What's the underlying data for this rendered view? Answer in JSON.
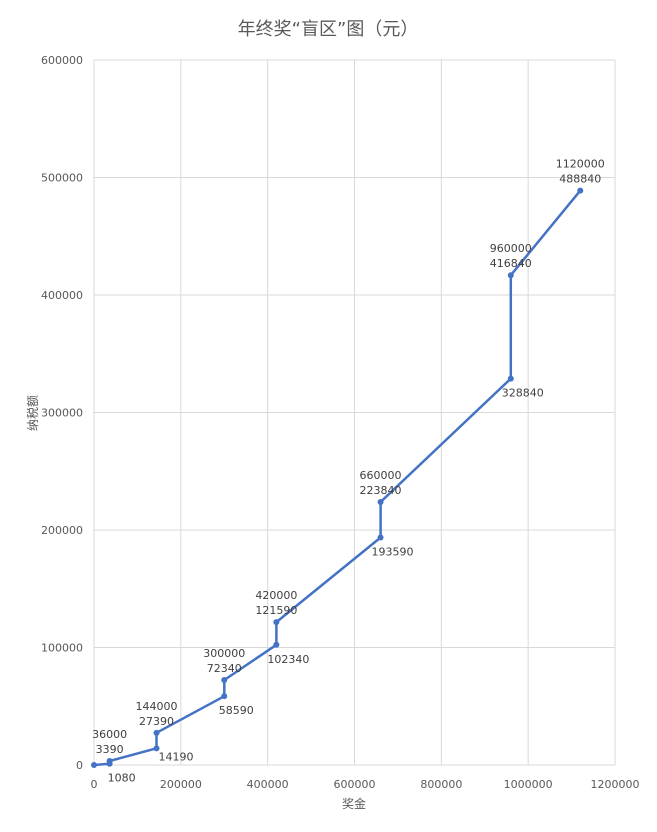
{
  "chart_data": {
    "type": "line",
    "title": "年终奖“盲区”图（元）",
    "xlabel": "奖金",
    "ylabel": "纳税额",
    "xlim": [
      0,
      1200000
    ],
    "ylim": [
      0,
      600000
    ],
    "grid": true,
    "x_ticks": [
      0,
      200000,
      400000,
      600000,
      800000,
      1000000,
      1200000
    ],
    "y_ticks": [
      0,
      100000,
      200000,
      300000,
      400000,
      500000,
      600000
    ],
    "x_tick_labels": [
      "0",
      "200000",
      "400000",
      "600000",
      "800000",
      "1000000",
      "1200000"
    ],
    "y_tick_labels": [
      "0",
      "100000",
      "200000",
      "300000",
      "400000",
      "500000",
      "600000"
    ],
    "series": [
      {
        "color": "#4472c4",
        "points": [
          {
            "x": 0,
            "y": 0
          },
          {
            "x": 36000,
            "y": 1080
          },
          {
            "x": 36000,
            "y": 3390
          },
          {
            "x": 144000,
            "y": 14190
          },
          {
            "x": 144000,
            "y": 27390
          },
          {
            "x": 300000,
            "y": 58590
          },
          {
            "x": 300000,
            "y": 72340
          },
          {
            "x": 420000,
            "y": 102340
          },
          {
            "x": 420000,
            "y": 121590
          },
          {
            "x": 660000,
            "y": 193590
          },
          {
            "x": 660000,
            "y": 223840
          },
          {
            "x": 960000,
            "y": 328840
          },
          {
            "x": 960000,
            "y": 416840
          },
          {
            "x": 1120000,
            "y": 488840
          }
        ]
      }
    ],
    "annotations": [
      {
        "text": "1080",
        "x": 36000,
        "y": 1080,
        "pos": "below"
      },
      {
        "text": "36000",
        "x": 36000,
        "y": 3390,
        "pos": "above2"
      },
      {
        "text": "3390",
        "x": 36000,
        "y": 3390,
        "pos": "above1"
      },
      {
        "text": "14190",
        "x": 144000,
        "y": 14190,
        "pos": "right"
      },
      {
        "text": "144000",
        "x": 144000,
        "y": 27390,
        "pos": "above2"
      },
      {
        "text": "27390",
        "x": 144000,
        "y": 27390,
        "pos": "above1"
      },
      {
        "text": "58590",
        "x": 300000,
        "y": 58590,
        "pos": "below"
      },
      {
        "text": "300000",
        "x": 300000,
        "y": 72340,
        "pos": "above2"
      },
      {
        "text": "72340",
        "x": 300000,
        "y": 72340,
        "pos": "above1"
      },
      {
        "text": "102340",
        "x": 420000,
        "y": 102340,
        "pos": "below"
      },
      {
        "text": "420000",
        "x": 420000,
        "y": 121590,
        "pos": "above2"
      },
      {
        "text": "121590",
        "x": 420000,
        "y": 121590,
        "pos": "above1"
      },
      {
        "text": "193590",
        "x": 660000,
        "y": 193590,
        "pos": "below"
      },
      {
        "text": "660000",
        "x": 660000,
        "y": 223840,
        "pos": "above2"
      },
      {
        "text": "223840",
        "x": 660000,
        "y": 223840,
        "pos": "above1"
      },
      {
        "text": "328840",
        "x": 960000,
        "y": 328840,
        "pos": "below"
      },
      {
        "text": "960000",
        "x": 960000,
        "y": 416840,
        "pos": "above2"
      },
      {
        "text": "416840",
        "x": 960000,
        "y": 416840,
        "pos": "above1"
      },
      {
        "text": "1120000",
        "x": 1120000,
        "y": 488840,
        "pos": "above2"
      },
      {
        "text": "488840",
        "x": 1120000,
        "y": 488840,
        "pos": "above1"
      }
    ]
  }
}
